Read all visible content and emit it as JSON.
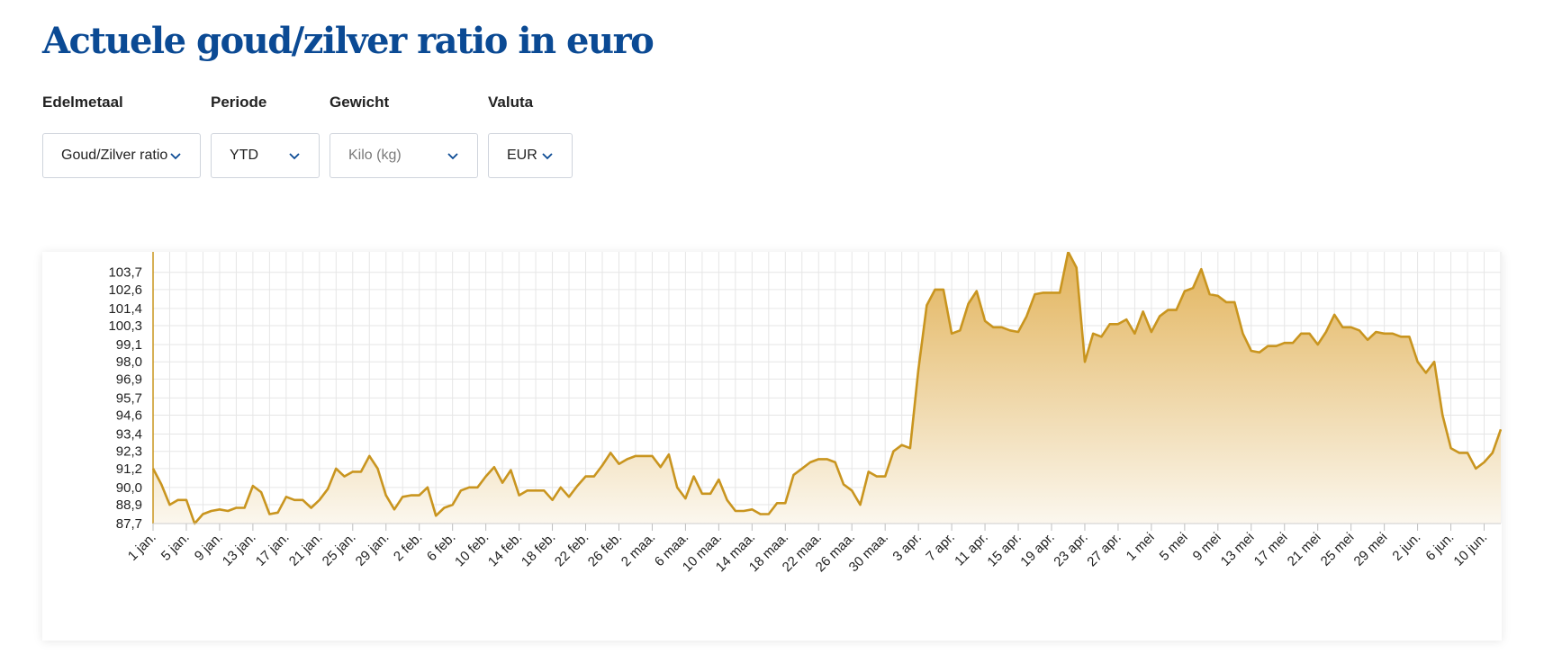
{
  "title": "Actuele goud/zilver ratio in euro",
  "filters": [
    {
      "label": "Edelmetaal",
      "value": "Goud/Zilver ratio",
      "placeholder": false
    },
    {
      "label": "Periode",
      "value": "YTD",
      "placeholder": false
    },
    {
      "label": "Gewicht",
      "value": "Kilo (kg)",
      "placeholder": true
    },
    {
      "label": "Valuta",
      "value": "EUR",
      "placeholder": false
    }
  ],
  "icons": {
    "dropdown": "chevron-down-icon"
  },
  "colors": {
    "title": "#0b4a94",
    "accent_chevron": "#0b4a94",
    "line": "#c9951f",
    "area_top": "#e2b35a",
    "area_bottom": "#fbf7ee",
    "grid": "#e6e6e6"
  },
  "chart_data": {
    "type": "area",
    "title": "",
    "xlabel": "",
    "ylabel": "",
    "grid": true,
    "legend": "none",
    "ylim": [
      87.7,
      105.0
    ],
    "yticks": [
      87.7,
      88.9,
      90.0,
      91.2,
      92.3,
      93.4,
      94.6,
      95.7,
      96.9,
      98.0,
      99.1,
      100.3,
      101.4,
      102.6,
      103.7
    ],
    "ytick_labels": [
      "87,7",
      "88,9",
      "90,0",
      "91,2",
      "92,3",
      "93,4",
      "94,6",
      "95,7",
      "96,9",
      "98,0",
      "99,1",
      "100,3",
      "101,4",
      "102,6",
      "103,7"
    ],
    "xtick_labels": [
      "1 jan.",
      "5 jan.",
      "9 jan.",
      "13 jan.",
      "17 jan.",
      "21 jan.",
      "25 jan.",
      "29 jan.",
      "2 feb.",
      "6 feb.",
      "10 feb.",
      "14 feb.",
      "18 feb.",
      "22 feb.",
      "26 feb.",
      "2 maa.",
      "6 maa.",
      "10 maa.",
      "14 maa.",
      "18 maa.",
      "22 maa.",
      "26 maa.",
      "30 maa.",
      "3 apr.",
      "7 apr.",
      "11 apr.",
      "15 apr.",
      "19 apr.",
      "23 apr.",
      "27 apr.",
      "1 mei",
      "5 mei",
      "9 mei",
      "13 mei",
      "17 mei",
      "21 mei",
      "25 mei",
      "29 mei",
      "2 jun.",
      "6 jun.",
      "10 jun."
    ],
    "series": [
      {
        "values": [
          91.2,
          90.2,
          88.9,
          89.2,
          89.2,
          87.7,
          88.3,
          88.5,
          88.6,
          88.5,
          88.7,
          88.7,
          90.1,
          89.7,
          88.3,
          88.4,
          89.4,
          89.2,
          89.2,
          88.7,
          89.2,
          89.9,
          91.2,
          90.7,
          91.0,
          91.0,
          92.0,
          91.2,
          89.5,
          88.6,
          89.4,
          89.5,
          89.5,
          90.0,
          88.2,
          88.7,
          88.9,
          89.8,
          90.0,
          90.0,
          90.7,
          91.3,
          90.3,
          91.1,
          89.5,
          89.8,
          89.8,
          89.8,
          89.2,
          90.0,
          89.4,
          90.1,
          90.7,
          90.7,
          91.4,
          92.2,
          91.5,
          91.8,
          92.0,
          92.0,
          92.0,
          91.3,
          92.1,
          90.0,
          89.3,
          90.7,
          89.6,
          89.6,
          90.5,
          89.2,
          88.5,
          88.5,
          88.6,
          88.3,
          88.3,
          89.0,
          89.0,
          90.8,
          91.2,
          91.6,
          91.8,
          91.8,
          91.6,
          90.2,
          89.8,
          88.9,
          91.0,
          90.7,
          90.7,
          92.3,
          92.7,
          92.5,
          97.5,
          101.6,
          102.6,
          102.6,
          99.8,
          100.0,
          101.7,
          102.5,
          100.6,
          100.2,
          100.2,
          100.0,
          99.9,
          100.9,
          102.3,
          102.4,
          102.4,
          102.4,
          105.0,
          104.0,
          98.0,
          99.8,
          99.6,
          100.4,
          100.4,
          100.7,
          99.8,
          101.2,
          99.9,
          100.9,
          101.3,
          101.3,
          102.5,
          102.7,
          103.9,
          102.3,
          102.2,
          101.8,
          101.8,
          99.8,
          98.7,
          98.6,
          99.0,
          99.0,
          99.2,
          99.2,
          99.8,
          99.8,
          99.1,
          99.9,
          101.0,
          100.2,
          100.2,
          100.0,
          99.4,
          99.9,
          99.8,
          99.8,
          99.6,
          99.6,
          98.0,
          97.3,
          98.0,
          94.6,
          92.5,
          92.2,
          92.2,
          91.2,
          91.6,
          92.2,
          93.7
        ]
      }
    ]
  }
}
